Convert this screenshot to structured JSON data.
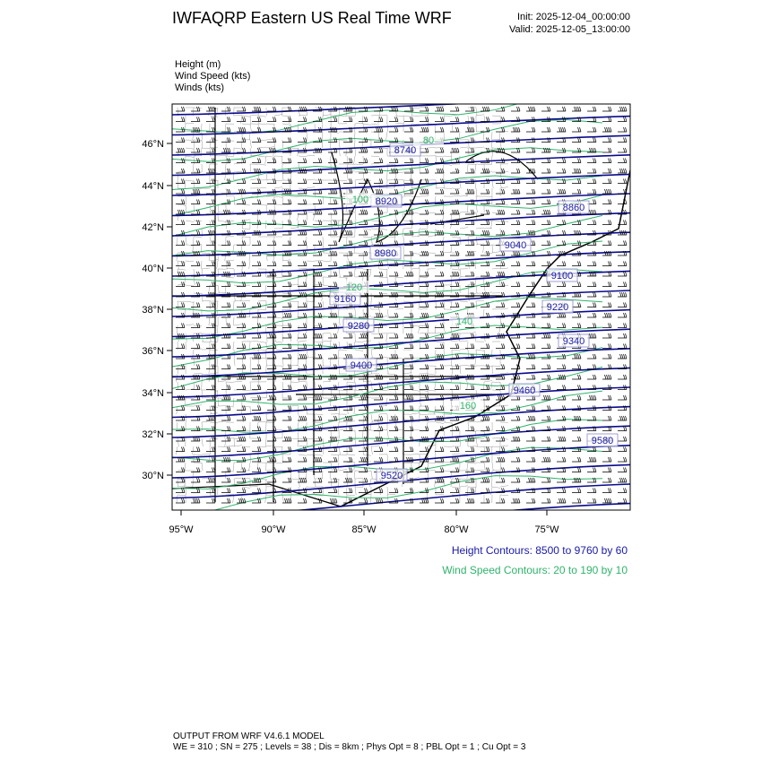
{
  "header": {
    "title": "IWFAQRP Eastern US Real Time WRF",
    "init": "Init: 2025-12-04_00:00:00",
    "valid": "Valid: 2025-12-05_13:00:00"
  },
  "fields": [
    "Height   (m)",
    "Wind Speed   (kts)",
    "Winds   (kts)"
  ],
  "axes": {
    "lat_ticks": [
      "30°N",
      "32°N",
      "34°N",
      "36°N",
      "38°N",
      "40°N",
      "42°N",
      "44°N",
      "46°N"
    ],
    "lon_ticks": [
      "95°W",
      "90°W",
      "85°W",
      "80°W",
      "75°W"
    ]
  },
  "contour_labels": [
    "8740",
    "8860",
    "8920",
    "8980",
    "9040",
    "9100",
    "9160",
    "9220",
    "9280",
    "9340",
    "9400",
    "9460",
    "9520",
    "9580",
    "80",
    "100",
    "120",
    "140",
    "160"
  ],
  "legend": {
    "height": "Height Contours: 8500 to 9760 by 60",
    "wind": "Wind Speed Contours: 20 to 190 by 10"
  },
  "colors": {
    "height": "#0a0a8c",
    "wind": "#2fb36a",
    "barbs": "#000000"
  },
  "footer": {
    "line1": "OUTPUT FROM WRF V4.6.1 MODEL",
    "line2": "WE = 310 ; SN = 275 ; Levels = 38 ; Dis = 8km ; Phys Opt = 8 ; PBL Opt = 1 ; Cu Opt = 3"
  }
}
